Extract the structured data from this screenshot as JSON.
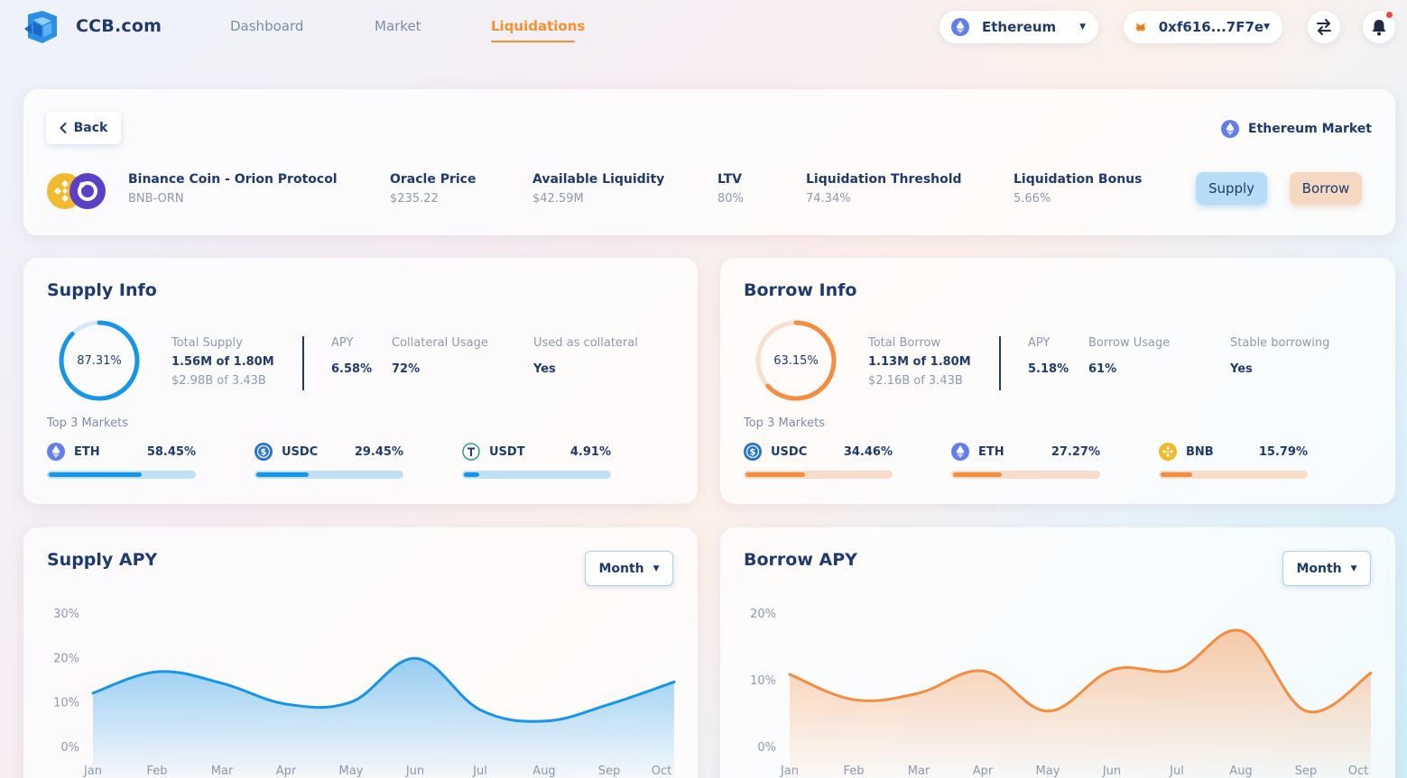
{
  "header": {
    "brand": "CCB.com",
    "nav": [
      {
        "label": "Dashboard"
      },
      {
        "label": "Market"
      },
      {
        "label": "Liquidations"
      }
    ],
    "network": "Ethereum",
    "wallet": "0xf616...7F7e",
    "icons": [
      "ethereum-icon",
      "metamask-fox-icon",
      "swap-arrows-icon",
      "bell-icon"
    ],
    "colors": {
      "accent": "#f7902e",
      "primary": "#1f3b6e",
      "supply": "#1795e8",
      "borrow": "#f58c3e"
    }
  },
  "asset": {
    "back_label": "Back",
    "market_label": "Ethereum Market",
    "name": "Binance Coin - Orion Protocol",
    "pair": "BNB-ORN",
    "stats": [
      {
        "label": "Oracle Price",
        "value": "$235.22"
      },
      {
        "label": "Available Liquidity",
        "value": "$42.59M"
      },
      {
        "label": "LTV",
        "value": "80%"
      },
      {
        "label": "Liquidation Threshold",
        "value": "74.34%"
      },
      {
        "label": "Liquidation Bonus",
        "value": "5.66%"
      }
    ],
    "supply_button": "Supply",
    "borrow_button": "Borrow"
  },
  "supply_info": {
    "title": "Supply Info",
    "ring_value": "87.31%",
    "ring_fraction": 0.8731,
    "total_label": "Total Supply",
    "total_amount": "1.56M of 1.80M",
    "total_usd": "$2.98B of 3.43B",
    "apy_label": "APY",
    "apy_value": "6.58%",
    "usage_label": "Collateral Usage",
    "usage_value": "72%",
    "extra_label": "Used as collateral",
    "extra_value": "Yes",
    "top3_label": "Top 3 Markets",
    "markets": [
      {
        "name": "ETH",
        "pct": "58.45%",
        "fraction": 0.6465,
        "icon": "ethereum-icon"
      },
      {
        "name": "USDC",
        "pct": "29.45%",
        "fraction": 0.3745,
        "icon": "usdc-icon"
      },
      {
        "name": "USDT",
        "pct": "4.91%",
        "fraction": 0.1291,
        "icon": "usdt-icon"
      }
    ]
  },
  "borrow_info": {
    "title": "Borrow Info",
    "ring_value": "63.15%",
    "ring_fraction": 0.6315,
    "total_label": "Total Borrow",
    "total_amount": "1.13M of 1.80M",
    "total_usd": "$2.16B of 3.43B",
    "apy_label": "APY",
    "apy_value": "5.18%",
    "usage_label": "Borrow Usage",
    "usage_value": "61%",
    "extra_label": "Stable borrowing",
    "extra_value": "Yes",
    "top3_label": "Top 3 Markets",
    "markets": [
      {
        "name": "USDC",
        "pct": "34.46%",
        "fraction": 0.4246,
        "icon": "usdc-icon"
      },
      {
        "name": "ETH",
        "pct": "27.27%",
        "fraction": 0.3527,
        "icon": "ethereum-icon"
      },
      {
        "name": "BNB",
        "pct": "15.79%",
        "fraction": 0.2379,
        "icon": "bnb-icon"
      }
    ]
  },
  "chart_data": [
    {
      "type": "area",
      "title": "Supply APY",
      "period_select": "Month",
      "x": [
        "Jan",
        "Feb",
        "Mar",
        "Apr",
        "May",
        "Jun",
        "Jul",
        "Aug",
        "Sep",
        "Oct"
      ],
      "values": [
        12,
        16.8,
        14.2,
        9.5,
        10,
        19.8,
        8.2,
        5.7,
        9.5,
        14.5
      ],
      "yticks": [
        "0%",
        "10%",
        "20%",
        "30%"
      ],
      "ylim": [
        0,
        30
      ],
      "color": "#1795e8",
      "grid": false
    },
    {
      "type": "area",
      "title": "Borrow APY",
      "period_select": "Month",
      "x": [
        "Jan",
        "Feb",
        "Mar",
        "Apr",
        "May",
        "Jun",
        "Jul",
        "Aug",
        "Sep",
        "Oct"
      ],
      "values": [
        10.8,
        7,
        8,
        11.3,
        5.3,
        11.5,
        11.5,
        17.3,
        5.3,
        11
      ],
      "yticks": [
        "0%",
        "10%",
        "20%"
      ],
      "ylim": [
        0,
        20
      ],
      "color": "#f58c3e",
      "grid": false
    }
  ]
}
